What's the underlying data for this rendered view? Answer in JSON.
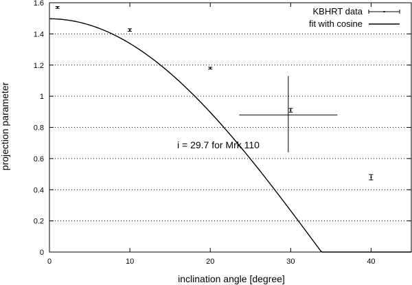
{
  "chart_data": {
    "type": "scatter",
    "title": "",
    "xlabel": "inclination angle [degree]",
    "ylabel": "projection parameter",
    "xlim": [
      0,
      45
    ],
    "ylim": [
      0,
      1.6
    ],
    "xticks": [
      0,
      10,
      20,
      30,
      40
    ],
    "yticks": [
      0,
      0.2,
      0.4,
      0.6,
      0.8,
      1,
      1.2,
      1.4,
      1.6
    ],
    "xtick_labels": [
      "0",
      "10",
      "20",
      "30",
      "40"
    ],
    "ytick_labels": [
      "0",
      "0.2",
      "0.4",
      "0.6",
      "0.8",
      "1",
      "1.2",
      "1.4",
      "1.6"
    ],
    "grid": "horizontal dotted",
    "legend_position": "top-right",
    "series": [
      {
        "name": "KBHRT data",
        "kind": "points-with-error-bars",
        "color": "#000000",
        "points": [
          {
            "x": 1,
            "y": 1.57,
            "yerr": 0.006
          },
          {
            "x": 10,
            "y": 1.425,
            "yerr": 0.008
          },
          {
            "x": 20,
            "y": 1.18,
            "yerr": 0.006
          },
          {
            "x": 30,
            "y": 0.91,
            "yerr": 0.012
          },
          {
            "x": 40,
            "y": 0.48,
            "yerr": 0.017
          }
        ]
      },
      {
        "name": "fit with cosine",
        "kind": "curve",
        "color": "#000000",
        "function": "a*cos(b*x)",
        "a": 1.497,
        "b": 2.66
      }
    ],
    "annotations": [
      {
        "text": "i = 29.7 for Mrk 110",
        "marker_x": 29.7,
        "marker_y": 0.88,
        "cross_x_range": [
          23.6,
          35.8
        ],
        "cross_y_range": [
          0.64,
          1.13
        ]
      }
    ]
  }
}
